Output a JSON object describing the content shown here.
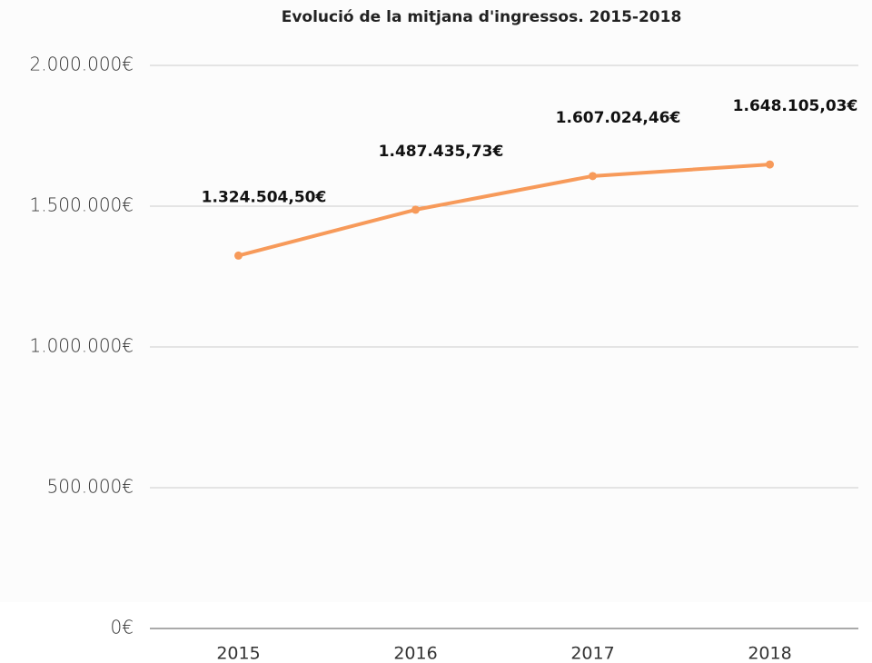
{
  "chart_data": {
    "type": "line",
    "title": "Evolució de la mitjana d'ingressos. 2015-2018",
    "categories": [
      "2015",
      "2016",
      "2017",
      "2018"
    ],
    "series": [
      {
        "name": "Mitjana d'ingressos",
        "color": "#f79a5a",
        "values": [
          1324504.5,
          1487435.73,
          1607024.46,
          1648105.03
        ],
        "value_labels": [
          "1.324.504,50€",
          "1.487.435,73€",
          "1.607.024,46€",
          "1.648.105,03€"
        ]
      }
    ],
    "ylim": [
      0,
      2000000
    ],
    "yticks": [
      {
        "value": 0,
        "label": "0€"
      },
      {
        "value": 500000,
        "label": "500.000€"
      },
      {
        "value": 1000000,
        "label": "1.000.000€"
      },
      {
        "value": 1500000,
        "label": "1.500.000€"
      },
      {
        "value": 2000000,
        "label": "2.000.000€"
      }
    ],
    "grid": true
  }
}
